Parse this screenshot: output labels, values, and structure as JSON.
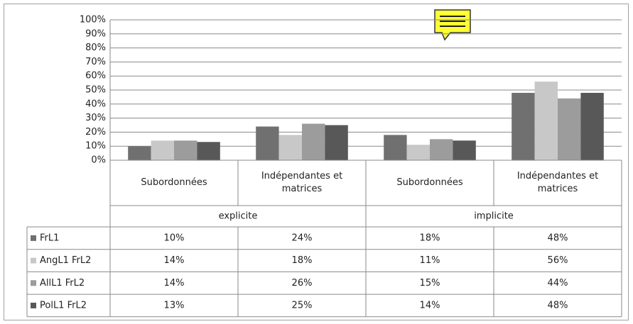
{
  "chart_data": {
    "type": "bar",
    "categories": [
      "Subordonnées",
      "Indépendantes et matrices",
      "Subordonnées",
      "Indépendantes et matrices"
    ],
    "category_groups": [
      "explicite",
      "implicite"
    ],
    "series": [
      {
        "name": "FrL1",
        "color": "#707070",
        "values": [
          10,
          24,
          18,
          48
        ],
        "value_labels": [
          "10%",
          "24%",
          "18%",
          "48%"
        ]
      },
      {
        "name": "AngL1 FrL2",
        "color": "#c8c8c8",
        "values": [
          14,
          18,
          11,
          56
        ],
        "value_labels": [
          "14%",
          "18%",
          "11%",
          "56%"
        ]
      },
      {
        "name": "AllL1 FrL2",
        "color": "#9c9c9c",
        "values": [
          14,
          26,
          15,
          44
        ],
        "value_labels": [
          "14%",
          "26%",
          "15%",
          "44%"
        ]
      },
      {
        "name": "PolL1 FrL2",
        "color": "#585858",
        "values": [
          13,
          25,
          14,
          48
        ],
        "value_labels": [
          "13%",
          "25%",
          "14%",
          "48%"
        ]
      }
    ],
    "ylim": [
      0,
      100
    ],
    "yticks": [
      {
        "value": 0,
        "label": "0%"
      },
      {
        "value": 10,
        "label": "10%"
      },
      {
        "value": 20,
        "label": "20%"
      },
      {
        "value": 30,
        "label": "30%"
      },
      {
        "value": 40,
        "label": "40%"
      },
      {
        "value": 50,
        "label": "50%"
      },
      {
        "value": 60,
        "label": "60%"
      },
      {
        "value": 70,
        "label": "70%"
      },
      {
        "value": 80,
        "label": "80%"
      },
      {
        "value": 90,
        "label": "90%"
      },
      {
        "value": 100,
        "label": "100%"
      }
    ],
    "grid": true
  }
}
